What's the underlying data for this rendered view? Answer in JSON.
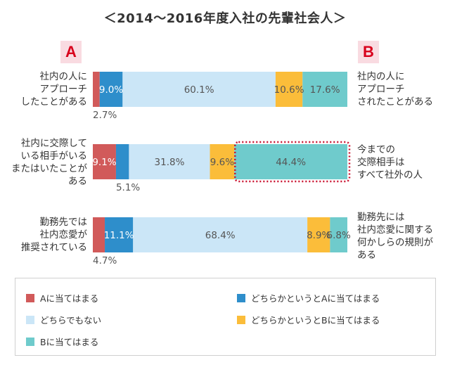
{
  "title": "＜2014〜2016年度入社の先輩社会人＞",
  "badge_a": "A",
  "badge_b": "B",
  "rows": [
    {
      "left_lines": [
        "社内の人に",
        "アプローチ",
        "したことがある"
      ],
      "right_lines": [
        "社内の人に",
        "アプローチ",
        "されたことがある"
      ]
    },
    {
      "left_lines": [
        "社内に交際して",
        "いる相手がいる",
        "またはいたことが",
        "ある"
      ],
      "right_lines": [
        "今までの",
        "交際相手は",
        "すべて社外の人"
      ]
    },
    {
      "left_lines": [
        "勤務先では",
        "社内恋愛が",
        "推奨されている"
      ],
      "right_lines": [
        "勤務先には",
        "社内恋愛に関する",
        "何かしらの規則が",
        "ある"
      ]
    }
  ],
  "chart_data": {
    "type": "bar",
    "stacked": true,
    "orientation": "horizontal",
    "xlim": [
      0,
      100
    ],
    "categories": [
      "社内の人にアプローチしたことがある",
      "社内に交際している相手がいるまたはいたことがある",
      "勤務先では社内恋愛が推奨されている"
    ],
    "series": [
      {
        "name": "Aに当てはまる",
        "color": "#d15a5a",
        "values": [
          2.7,
          9.1,
          4.7
        ]
      },
      {
        "name": "どちらかというとAに当てはまる",
        "color": "#2e8ecb",
        "values": [
          9.0,
          5.1,
          11.1
        ]
      },
      {
        "name": "どちらでもない",
        "color": "#cbe6f7",
        "values": [
          60.1,
          31.8,
          68.4
        ]
      },
      {
        "name": "どちらかというとBに当てはまる",
        "color": "#fbbd3a",
        "values": [
          10.6,
          9.6,
          8.9
        ]
      },
      {
        "name": "Bに当てはまる",
        "color": "#6fcbcc",
        "values": [
          17.6,
          44.4,
          6.8
        ]
      }
    ],
    "value_labels": [
      [
        "2.7%",
        "9.0%",
        "60.1%",
        "10.6%",
        "17.6%"
      ],
      [
        "9.1%",
        "5.1%",
        "31.8%",
        "9.6%",
        "44.4%"
      ],
      [
        "4.7%",
        "11.1%",
        "68.4%",
        "8.9%",
        "6.8%"
      ]
    ],
    "highlight": {
      "row": 1,
      "series": 4,
      "color": "#c8102e"
    }
  }
}
